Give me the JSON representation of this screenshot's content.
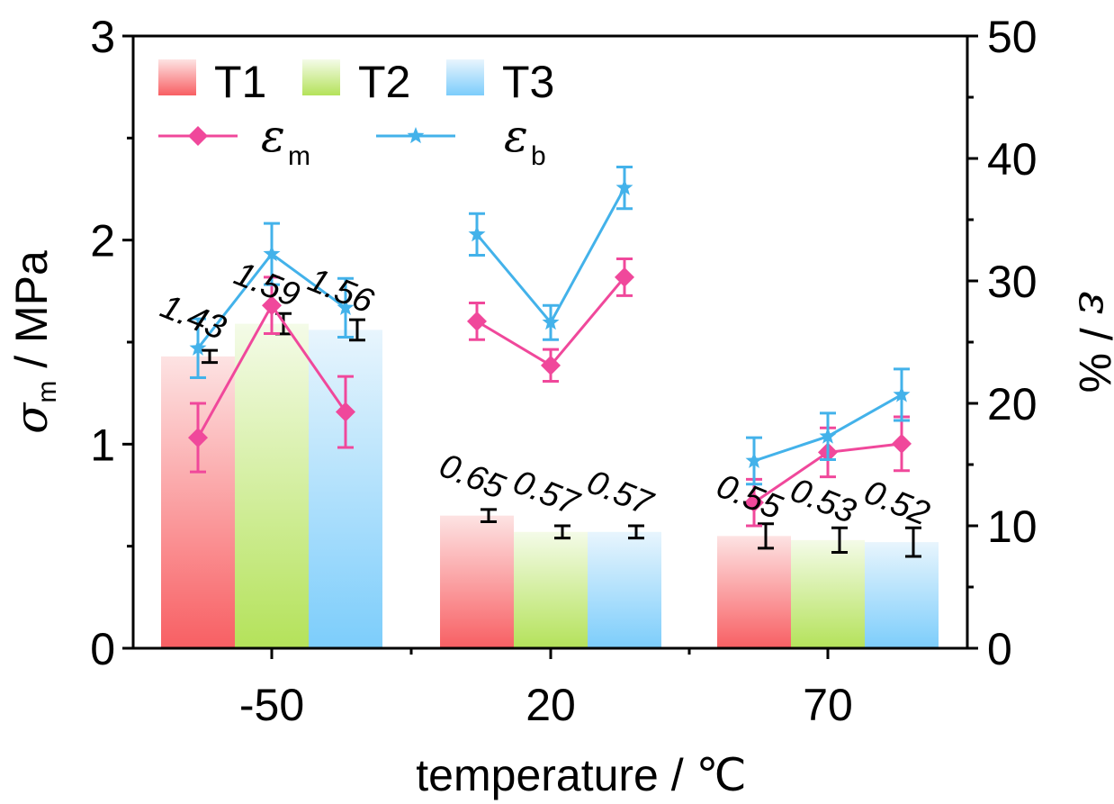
{
  "chart_data": {
    "type": "bar",
    "categories": [
      "-50",
      "20",
      "70"
    ],
    "xlabel": "temperature / ℃",
    "ylabel_left": {
      "main": "σ",
      "sub": "m",
      "rest": " / MPa"
    },
    "ylabel_right": {
      "main": "ε",
      "rest": " / %"
    },
    "ylim_left": [
      0,
      3
    ],
    "yticks_left": [
      "0",
      "1",
      "2",
      "3"
    ],
    "ylim_right": [
      0,
      50
    ],
    "yticks_right": [
      "0",
      "10",
      "20",
      "30",
      "40",
      "50"
    ],
    "bar_series": [
      {
        "name": "T1",
        "values": [
          1.43,
          0.65,
          0.55
        ],
        "errors": [
          0.03,
          0.03,
          0.06
        ],
        "labels": [
          "1.43",
          "0.65",
          "0.55"
        ],
        "color_top": "#fde3e3",
        "color_bottom": "#f85f63"
      },
      {
        "name": "T2",
        "values": [
          1.59,
          0.57,
          0.53
        ],
        "errors": [
          0.05,
          0.03,
          0.06
        ],
        "labels": [
          "1.59",
          "0.57",
          "0.53"
        ],
        "color_top": "#f4fbe8",
        "color_bottom": "#b4e25a"
      },
      {
        "name": "T3",
        "values": [
          1.56,
          0.57,
          0.52
        ],
        "errors": [
          0.05,
          0.03,
          0.07
        ],
        "labels": [
          "1.56",
          "0.57",
          "0.52"
        ],
        "color_top": "#e8f5fd",
        "color_bottom": "#7ccdfb"
      }
    ],
    "line_series": [
      {
        "name_main": "ε",
        "name_sub": "m",
        "color": "#f0489b",
        "marker": "diamond",
        "groups": [
          {
            "values": [
              17.2,
              28.0,
              19.3
            ],
            "errors": [
              2.8,
              2.3,
              2.9
            ]
          },
          {
            "values": [
              26.7,
              23.1,
              30.3
            ],
            "errors": [
              1.5,
              1.3,
              1.5
            ]
          },
          {
            "values": [
              11.9,
              16.0,
              16.7
            ],
            "errors": [
              1.9,
              2.0,
              2.2
            ]
          }
        ]
      },
      {
        "name_main": "ε",
        "name_sub": "b",
        "color": "#43b2ea",
        "marker": "star",
        "groups": [
          {
            "values": [
              24.5,
              32.2,
              27.8
            ],
            "errors": [
              2.4,
              2.5,
              2.4
            ]
          },
          {
            "values": [
              33.8,
              26.6,
              37.6
            ],
            "errors": [
              1.7,
              1.4,
              1.7
            ]
          },
          {
            "values": [
              15.3,
              17.3,
              20.7
            ],
            "errors": [
              1.9,
              1.9,
              2.1
            ]
          }
        ]
      }
    ],
    "legend_position": "top-left"
  }
}
